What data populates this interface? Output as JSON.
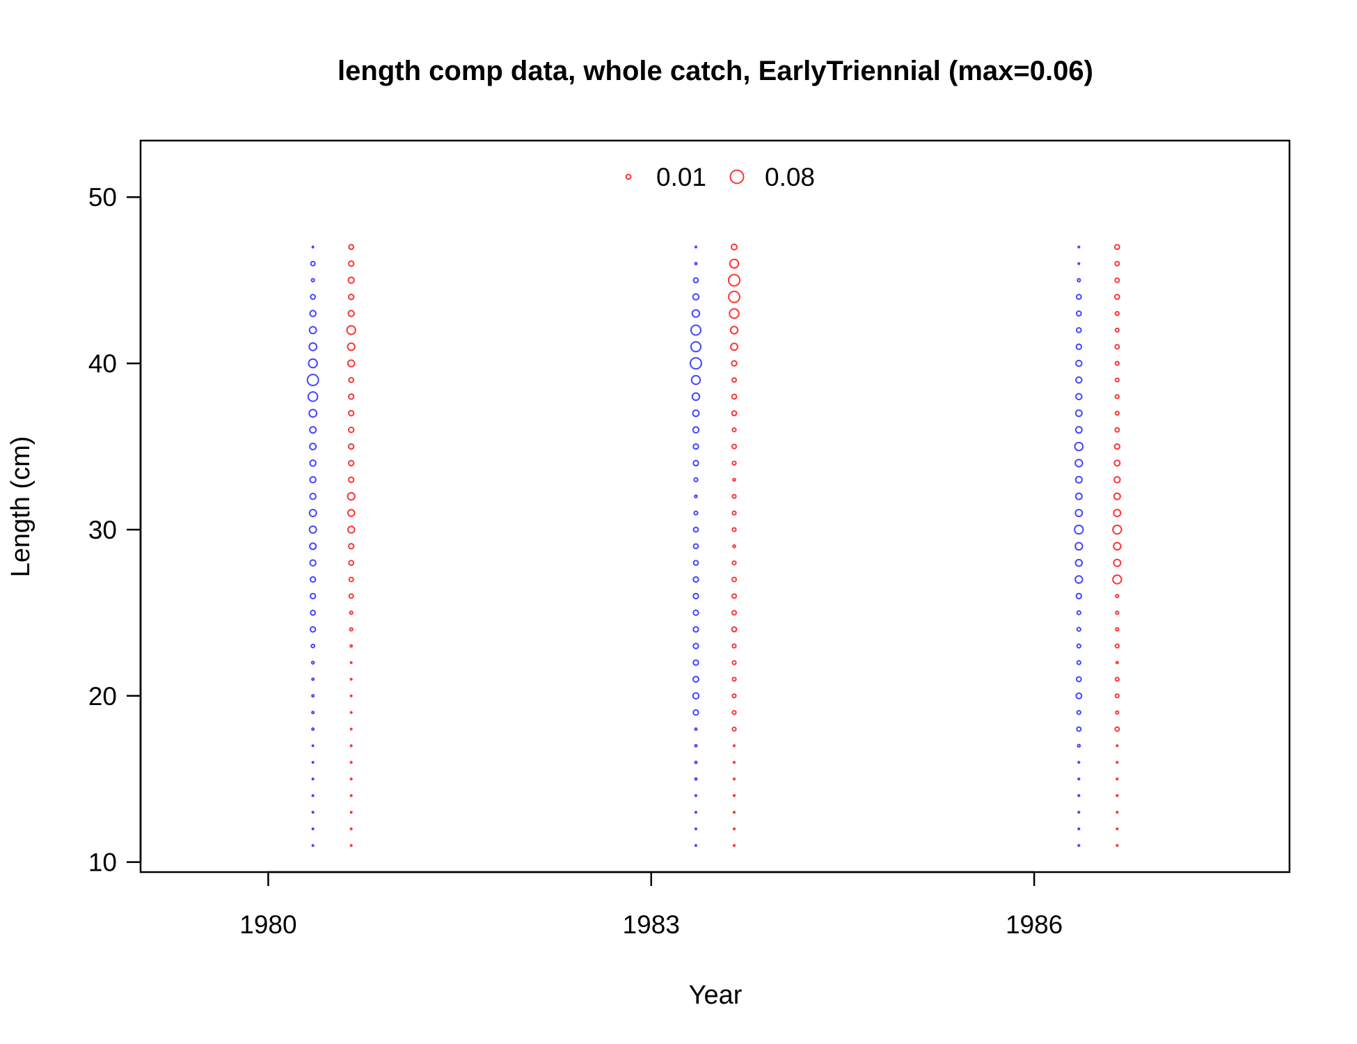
{
  "chart_data": {
    "type": "scatter",
    "subtype": "bubble",
    "title": "length comp data, whole catch, EarlyTriennial (max=0.06)",
    "xlabel": "Year",
    "ylabel": "Length (cm)",
    "xlim": [
      1979.0,
      1988.0
    ],
    "ylim": [
      9.4,
      53.4
    ],
    "x_ticks": [
      1980,
      1983,
      1986
    ],
    "y_ticks": [
      10,
      20,
      30,
      40,
      50
    ],
    "legend": {
      "placement": "top-center",
      "entries": [
        {
          "label": "0.01",
          "value": 0.01,
          "color": "#ff3333"
        },
        {
          "label": "0.08",
          "value": 0.08,
          "color": "#ff3333"
        }
      ]
    },
    "colors": {
      "female": "#4444ff",
      "male": "#ff3333"
    },
    "lengths": [
      11,
      12,
      13,
      14,
      15,
      16,
      17,
      18,
      19,
      20,
      21,
      22,
      23,
      24,
      25,
      26,
      27,
      28,
      29,
      30,
      31,
      32,
      33,
      34,
      35,
      36,
      37,
      38,
      39,
      40,
      41,
      42,
      43,
      44,
      45,
      46,
      47
    ],
    "series": [
      {
        "year": 1980,
        "x": 1980.35,
        "color": "#4444ff",
        "values": [
          0.001,
          0.001,
          0.001,
          0.001,
          0.001,
          0.001,
          0.001,
          0.002,
          0.002,
          0.002,
          0.002,
          0.003,
          0.005,
          0.012,
          0.01,
          0.012,
          0.012,
          0.016,
          0.018,
          0.022,
          0.022,
          0.016,
          0.016,
          0.016,
          0.018,
          0.018,
          0.026,
          0.04,
          0.056,
          0.034,
          0.026,
          0.022,
          0.016,
          0.01,
          0.004,
          0.008,
          0.001
        ]
      },
      {
        "year": 1980,
        "x": 1980.65,
        "color": "#ff3333",
        "values": [
          0.001,
          0.001,
          0.001,
          0.001,
          0.001,
          0.001,
          0.001,
          0.001,
          0.001,
          0.001,
          0.001,
          0.001,
          0.002,
          0.004,
          0.004,
          0.008,
          0.008,
          0.01,
          0.012,
          0.02,
          0.02,
          0.024,
          0.012,
          0.012,
          0.012,
          0.012,
          0.012,
          0.012,
          0.01,
          0.02,
          0.024,
          0.034,
          0.016,
          0.012,
          0.016,
          0.012,
          0.01
        ]
      },
      {
        "year": 1983,
        "x": 1983.35,
        "color": "#4444ff",
        "values": [
          0.001,
          0.001,
          0.001,
          0.001,
          0.002,
          0.002,
          0.002,
          0.002,
          0.012,
          0.016,
          0.014,
          0.012,
          0.012,
          0.012,
          0.012,
          0.012,
          0.012,
          0.01,
          0.01,
          0.01,
          0.006,
          0.003,
          0.006,
          0.012,
          0.012,
          0.016,
          0.018,
          0.024,
          0.034,
          0.056,
          0.044,
          0.044,
          0.024,
          0.016,
          0.01,
          0.002,
          0.001
        ]
      },
      {
        "year": 1983,
        "x": 1983.65,
        "color": "#ff3333",
        "values": [
          0.001,
          0.001,
          0.001,
          0.001,
          0.001,
          0.001,
          0.001,
          0.006,
          0.006,
          0.006,
          0.006,
          0.006,
          0.006,
          0.01,
          0.008,
          0.008,
          0.008,
          0.006,
          0.003,
          0.006,
          0.006,
          0.006,
          0.003,
          0.006,
          0.008,
          0.006,
          0.01,
          0.01,
          0.008,
          0.012,
          0.022,
          0.024,
          0.04,
          0.056,
          0.058,
          0.034,
          0.014
        ]
      },
      {
        "year": 1986,
        "x": 1986.35,
        "color": "#4444ff",
        "values": [
          0.001,
          0.001,
          0.001,
          0.001,
          0.001,
          0.001,
          0.003,
          0.008,
          0.006,
          0.014,
          0.01,
          0.006,
          0.006,
          0.006,
          0.006,
          0.012,
          0.024,
          0.02,
          0.024,
          0.034,
          0.022,
          0.018,
          0.018,
          0.024,
          0.03,
          0.018,
          0.018,
          0.016,
          0.016,
          0.016,
          0.012,
          0.01,
          0.01,
          0.01,
          0.004,
          0.001,
          0.001
        ]
      },
      {
        "year": 1986,
        "x": 1986.65,
        "color": "#ff3333",
        "values": [
          0.001,
          0.001,
          0.001,
          0.001,
          0.001,
          0.001,
          0.001,
          0.008,
          0.004,
          0.006,
          0.006,
          0.002,
          0.006,
          0.004,
          0.004,
          0.004,
          0.034,
          0.022,
          0.024,
          0.034,
          0.022,
          0.018,
          0.016,
          0.014,
          0.012,
          0.008,
          0.006,
          0.006,
          0.006,
          0.006,
          0.008,
          0.006,
          0.006,
          0.01,
          0.008,
          0.008,
          0.01
        ]
      }
    ]
  }
}
